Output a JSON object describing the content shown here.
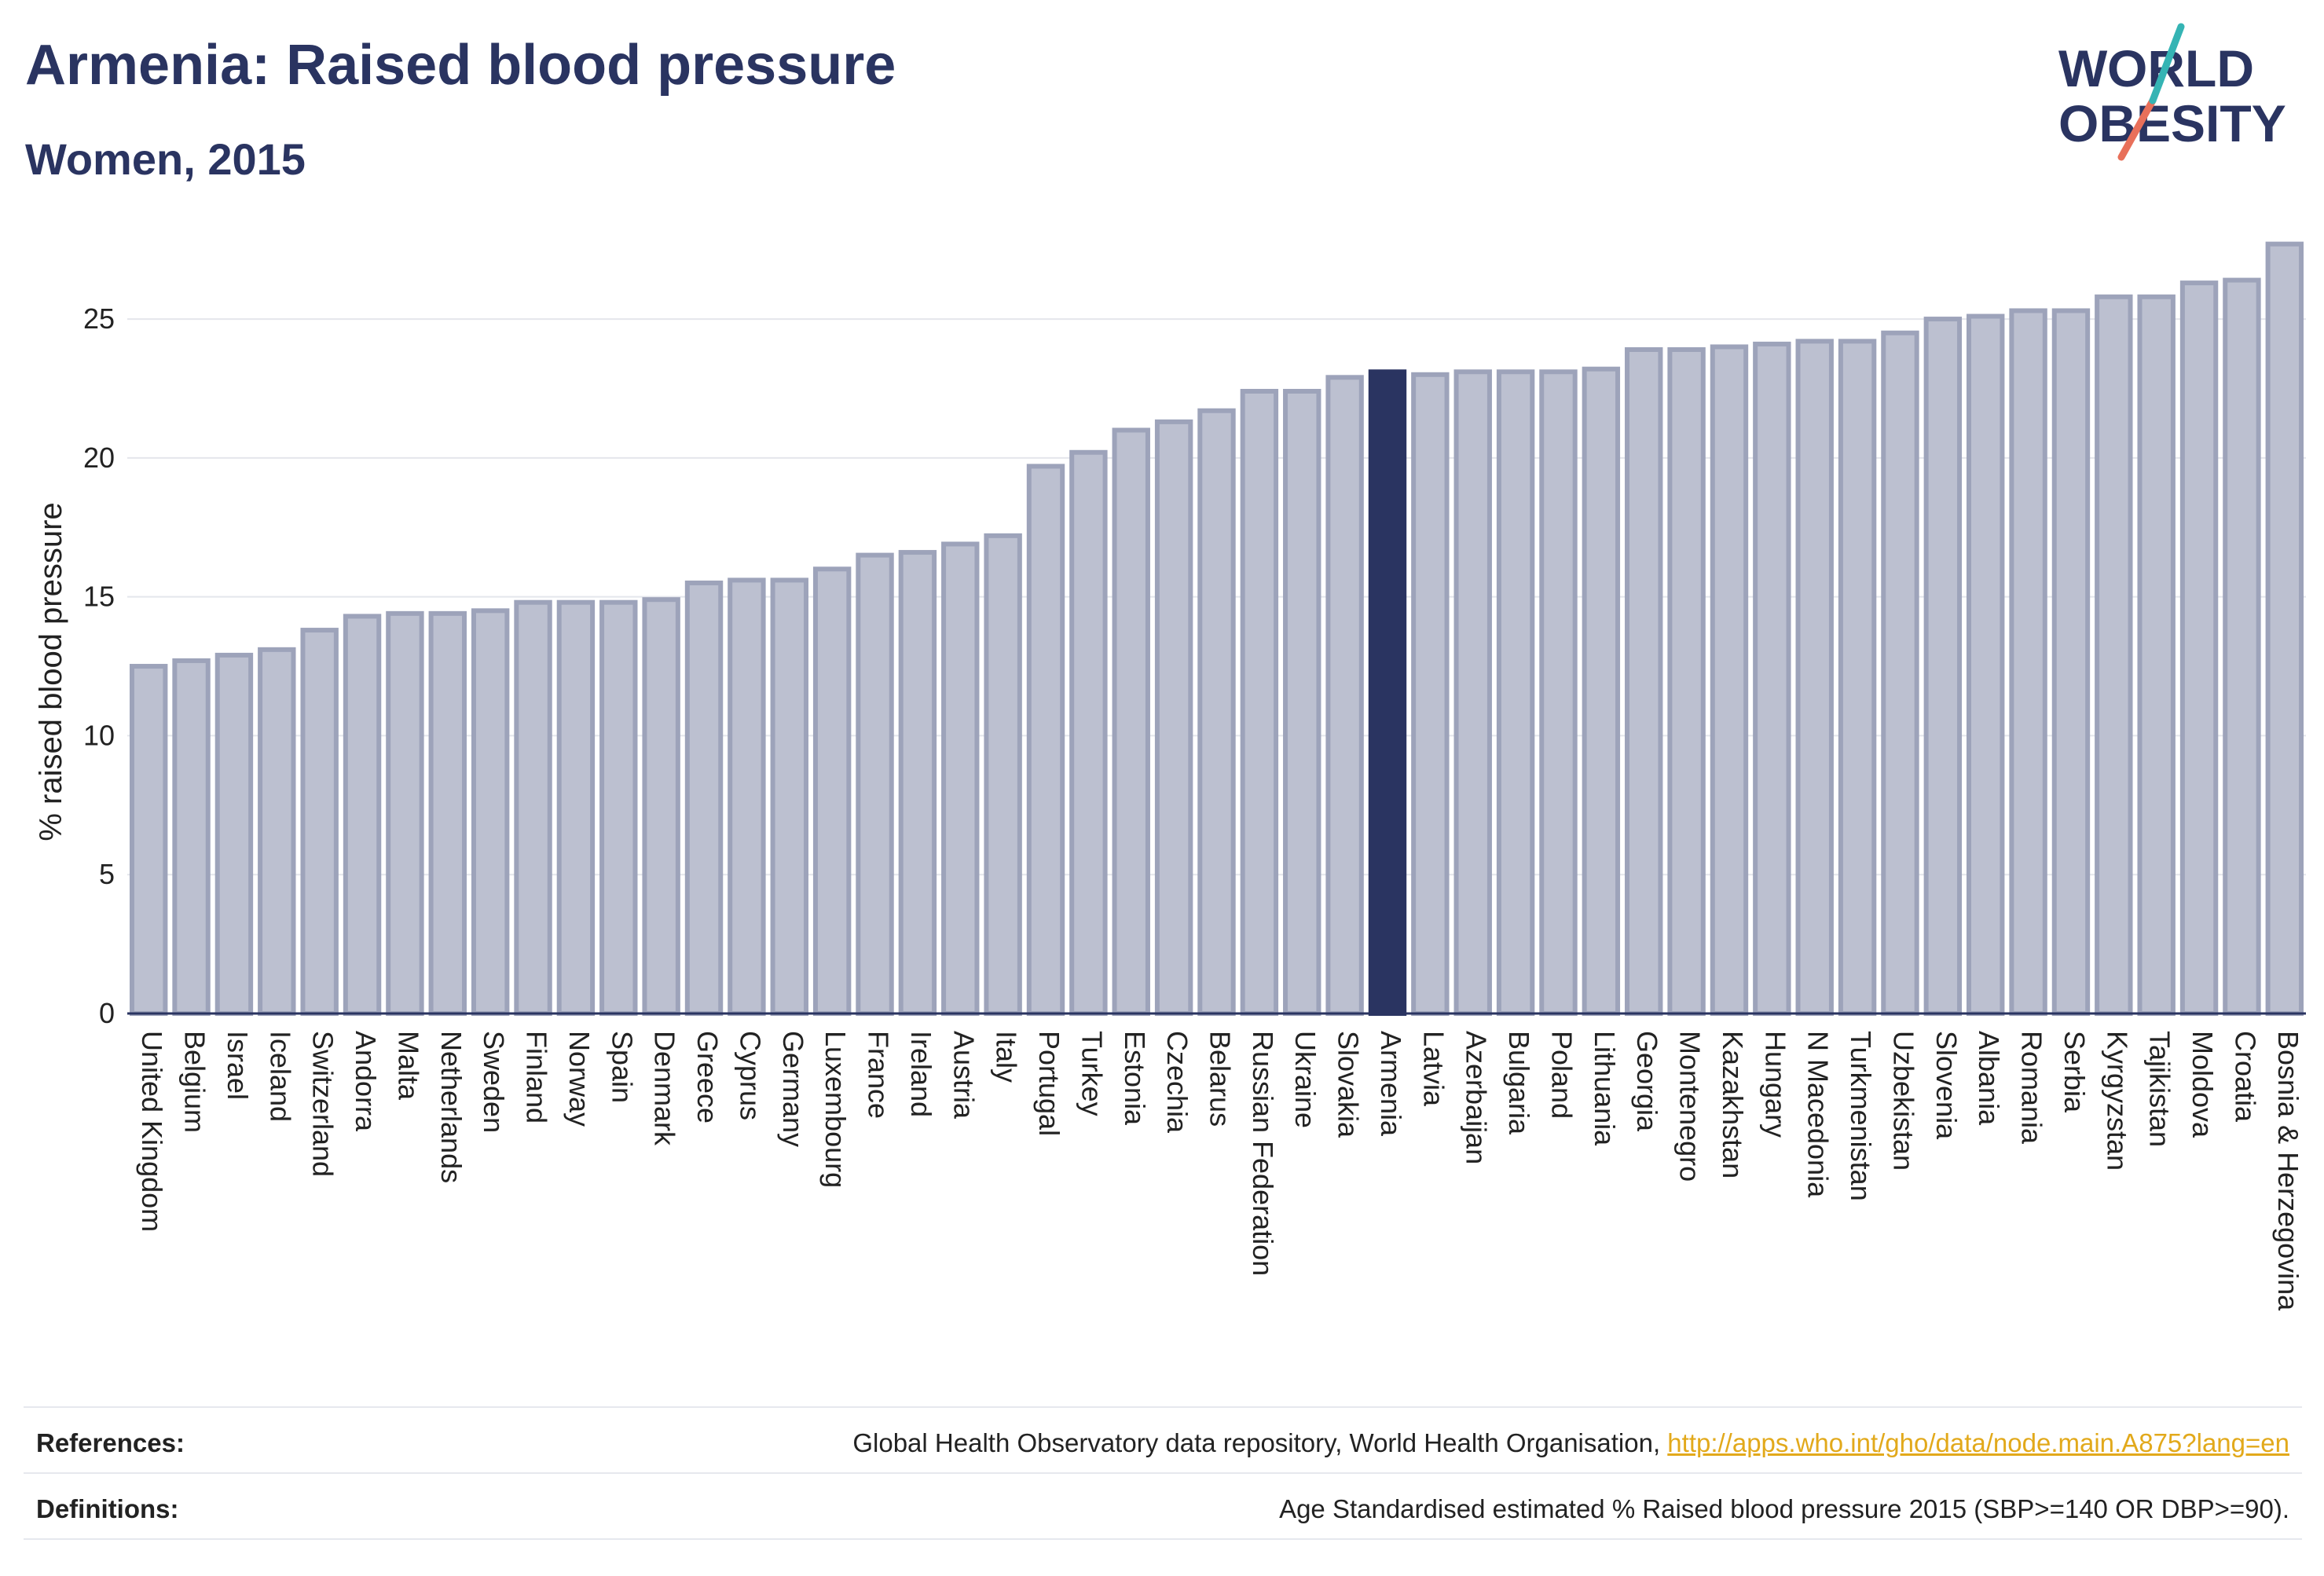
{
  "header": {
    "title": "Armenia: Raised blood pressure",
    "subtitle": "Women, 2015",
    "logo_text": "WORLD OBESITY"
  },
  "colors": {
    "bar_fill": "#bcc0d0",
    "bar_stroke": "#9da3ba",
    "highlight": "#2a3461",
    "logo_teal": "#35b4b4",
    "logo_coral": "#e8705a",
    "link": "#e2a91b"
  },
  "chart_data": {
    "type": "bar",
    "title": "Armenia: Raised blood pressure",
    "subtitle": "Women, 2015",
    "xlabel": "",
    "ylabel": "% raised blood pressure",
    "ylim": [
      0,
      28
    ],
    "yticks": [
      0,
      5,
      10,
      15,
      20,
      25
    ],
    "grid": true,
    "highlight": "Armenia",
    "categories": [
      "United Kingdom",
      "Belgium",
      "Israel",
      "Iceland",
      "Switzerland",
      "Andorra",
      "Malta",
      "Netherlands",
      "Sweden",
      "Finland",
      "Norway",
      "Spain",
      "Denmark",
      "Greece",
      "Cyprus",
      "Germany",
      "Luxembourg",
      "France",
      "Ireland",
      "Austria",
      "Italy",
      "Portugal",
      "Turkey",
      "Estonia",
      "Czechia",
      "Belarus",
      "Russian Federation",
      "Ukraine",
      "Slovakia",
      "Armenia",
      "Latvia",
      "Azerbaijan",
      "Bulgaria",
      "Poland",
      "Lithuania",
      "Georgia",
      "Montenegro",
      "Kazakhstan",
      "Hungary",
      "N Macedonia",
      "Turkmenistan",
      "Uzbekistan",
      "Slovenia",
      "Albania",
      "Romania",
      "Serbia",
      "Kyrgyzstan",
      "Tajikistan",
      "Moldova",
      "Croatia",
      "Bosnia & Herzegovina"
    ],
    "values": [
      12.5,
      12.7,
      12.9,
      13.1,
      13.8,
      14.3,
      14.4,
      14.4,
      14.5,
      14.8,
      14.8,
      14.8,
      14.9,
      15.5,
      15.6,
      15.6,
      16.0,
      16.5,
      16.6,
      16.9,
      17.2,
      19.7,
      20.2,
      21.0,
      21.3,
      21.7,
      22.4,
      22.4,
      22.9,
      23.1,
      23.0,
      23.1,
      23.1,
      23.1,
      23.2,
      23.9,
      23.9,
      24.0,
      24.1,
      24.2,
      24.2,
      24.5,
      25.0,
      25.1,
      25.3,
      25.3,
      25.8,
      25.8,
      26.3,
      26.4,
      27.7
    ]
  },
  "footer": {
    "references_label": "References:",
    "references_text": "Global Health Observatory data repository, World Health Organisation, ",
    "references_link": "http://apps.who.int/gho/data/node.main.A875?lang=en",
    "definitions_label": "Definitions:",
    "definitions_text": "Age Standardised estimated % Raised blood pressure 2015 (SBP>=140 OR DBP>=90)."
  }
}
